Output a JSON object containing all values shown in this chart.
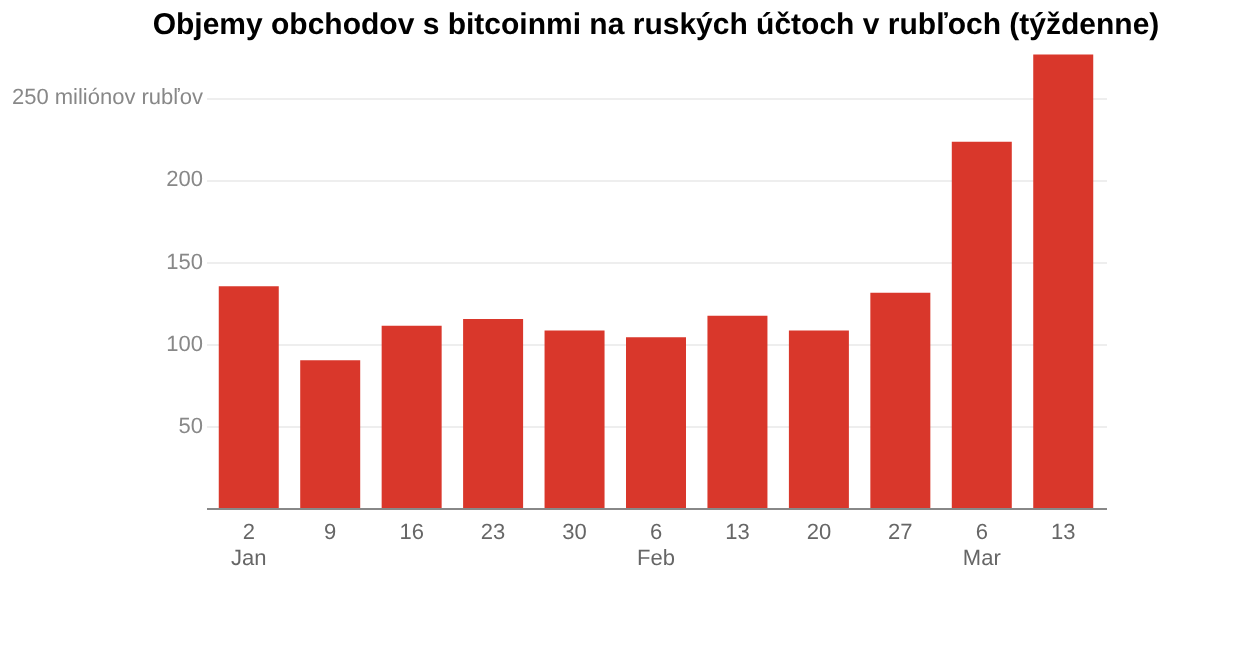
{
  "chart_data": {
    "type": "bar",
    "title": "Objemy obchodov s bitcoinmi na ruských účtoch v rubľoch (týždenne)",
    "categories": [
      "2\nJan",
      "9",
      "16",
      "23",
      "30",
      "6\nFeb",
      "13",
      "20",
      "27",
      "6\nMar",
      "13"
    ],
    "values": [
      135,
      90,
      111,
      115,
      108,
      104,
      117,
      108,
      131,
      223,
      276
    ],
    "color": "#d9372b",
    "ylim": [
      0,
      280
    ],
    "yticks": [
      50,
      100,
      150,
      200,
      {
        "value": 250,
        "label": "250 miliónov rubľov"
      }
    ],
    "grid": "y"
  }
}
